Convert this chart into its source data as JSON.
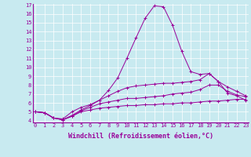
{
  "xlabel": "Windchill (Refroidissement éolien,°C)",
  "background_color": "#c8eaf0",
  "line_color": "#990099",
  "x_values": [
    0,
    1,
    2,
    3,
    4,
    5,
    6,
    7,
    8,
    9,
    10,
    11,
    12,
    13,
    14,
    15,
    16,
    17,
    18,
    19,
    20,
    21,
    22,
    23
  ],
  "series": [
    [
      5.0,
      4.9,
      4.3,
      4.1,
      4.5,
      5.0,
      5.2,
      5.4,
      5.5,
      5.6,
      5.7,
      5.7,
      5.8,
      5.8,
      5.9,
      5.9,
      6.0,
      6.0,
      6.1,
      6.2,
      6.2,
      6.3,
      6.4,
      6.4
    ],
    [
      5.0,
      4.9,
      4.3,
      4.1,
      4.5,
      5.1,
      5.5,
      5.9,
      6.1,
      6.3,
      6.5,
      6.5,
      6.6,
      6.7,
      6.8,
      7.0,
      7.1,
      7.2,
      7.5,
      8.0,
      8.0,
      7.3,
      6.9,
      6.7
    ],
    [
      5.0,
      4.9,
      4.3,
      4.1,
      4.6,
      5.2,
      5.7,
      6.3,
      6.8,
      7.3,
      7.7,
      7.9,
      8.0,
      8.1,
      8.2,
      8.2,
      8.3,
      8.4,
      8.6,
      9.3,
      8.4,
      7.8,
      7.3,
      6.8
    ],
    [
      5.0,
      4.9,
      4.3,
      4.2,
      5.0,
      5.5,
      5.8,
      6.3,
      7.4,
      8.8,
      11.0,
      13.3,
      15.5,
      16.9,
      16.8,
      14.7,
      11.8,
      9.5,
      9.2,
      9.3,
      8.4,
      7.1,
      6.8,
      6.3
    ]
  ],
  "ylim": [
    4,
    17
  ],
  "xlim": [
    0,
    23
  ],
  "yticks": [
    4,
    5,
    6,
    7,
    8,
    9,
    10,
    11,
    12,
    13,
    14,
    15,
    16,
    17
  ],
  "xticks": [
    0,
    1,
    2,
    3,
    4,
    5,
    6,
    7,
    8,
    9,
    10,
    11,
    12,
    13,
    14,
    15,
    16,
    17,
    18,
    19,
    20,
    21,
    22,
    23
  ],
  "tick_fontsize": 5.0,
  "xlabel_fontsize": 6.0,
  "marker": "+",
  "marker_size": 2.5,
  "linewidth": 0.7
}
